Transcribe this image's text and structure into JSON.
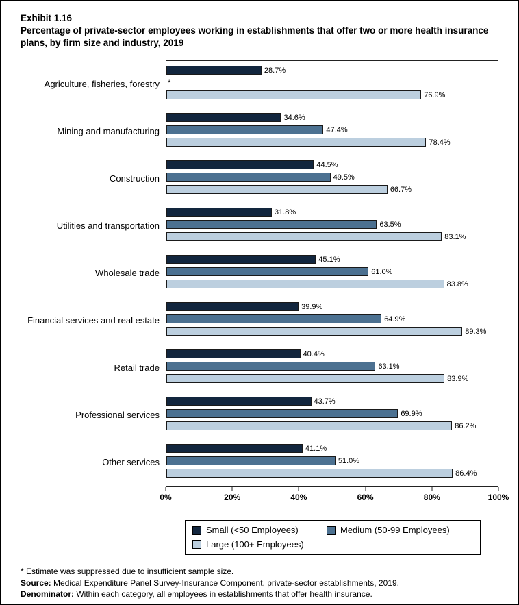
{
  "title": {
    "exhibit": "Exhibit 1.16",
    "text": "Percentage of private-sector employees working in establishments that offer two or more health insurance plans, by firm size and industry, 2019"
  },
  "chart_data": {
    "type": "bar",
    "orientation": "horizontal",
    "title": "Percentage of private-sector employees working in establishments that offer two or more health insurance plans, by firm size and industry, 2019",
    "categories": [
      "Agriculture, fisheries, forestry",
      "Mining and manufacturing",
      "Construction",
      "Utilities and transportation",
      "Wholesale trade",
      "Financial services and real estate",
      "Retail trade",
      "Professional services",
      "Other services"
    ],
    "series": [
      {
        "name": "Small (<50 Employees)",
        "color": "#12263e",
        "values": [
          28.7,
          34.6,
          44.5,
          31.8,
          45.1,
          39.9,
          40.4,
          43.7,
          41.1
        ]
      },
      {
        "name": "Medium (50-99 Employees)",
        "color": "#4c7191",
        "values": [
          null,
          47.4,
          49.5,
          63.5,
          61.0,
          64.9,
          63.1,
          69.9,
          51.0
        ]
      },
      {
        "name": "Large (100+ Employees)",
        "color": "#bccfdf",
        "values": [
          76.9,
          78.4,
          66.7,
          83.1,
          83.8,
          89.3,
          83.9,
          86.2,
          86.4
        ]
      }
    ],
    "xlim": [
      0,
      100
    ],
    "x_ticks": [
      "0%",
      "20%",
      "40%",
      "60%",
      "80%",
      "100%"
    ],
    "value_suffix": "%",
    "suppressed_marker": "*",
    "grid": false,
    "legend_position": "bottom"
  },
  "footnotes": {
    "suppressed": "* Estimate was suppressed due to insufficient sample size.",
    "source_label": "Source:",
    "source_text": " Medical Expenditure Panel Survey-Insurance Component, private-sector establishments, 2019.",
    "denominator_label": "Denominator:",
    "denominator_text": " Within each category, all employees in establishments that offer health insurance."
  }
}
